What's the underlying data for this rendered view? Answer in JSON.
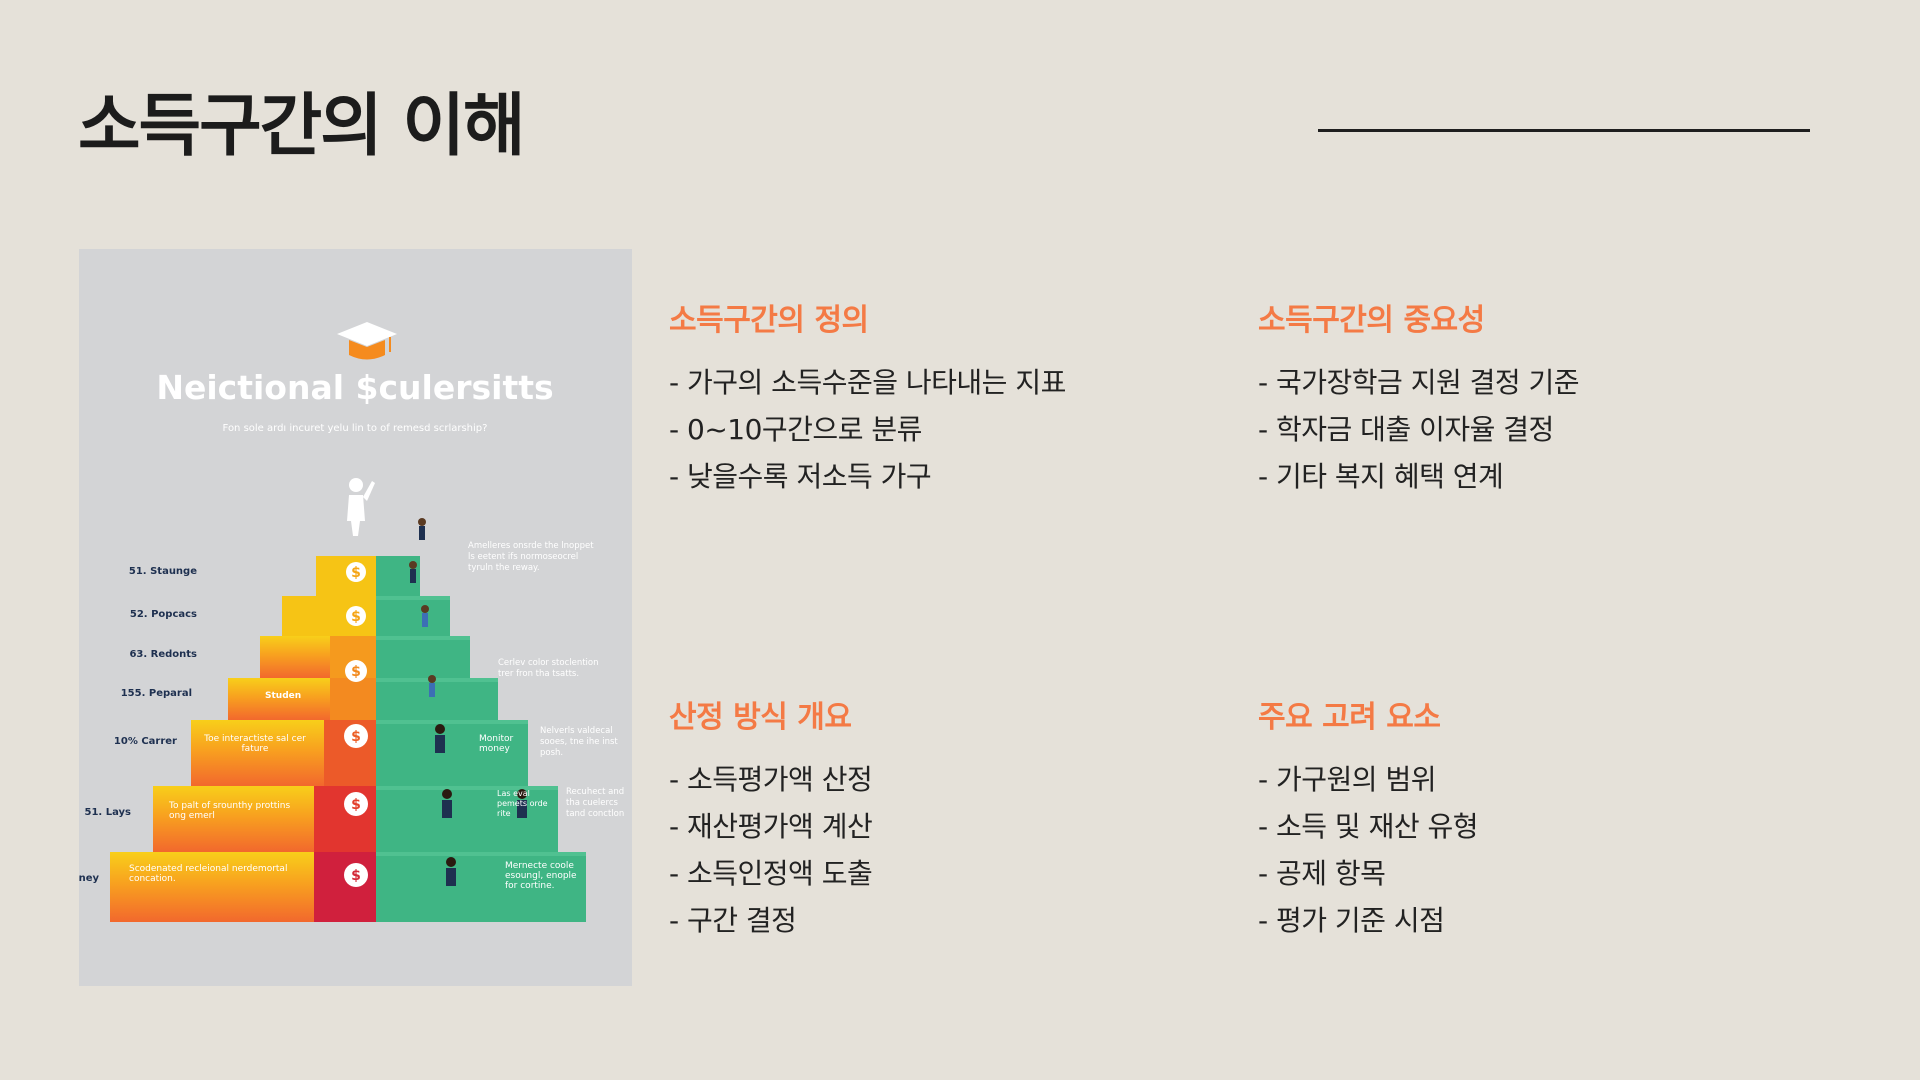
{
  "slide": {
    "title": "소득구간의 이해"
  },
  "poster": {
    "title": "Neictional $culersitts",
    "subtitle": "Fon sole ardı incuret yelu lin to of remesd scrlarship?",
    "coin_symbol": "$",
    "left_labels": [
      "51. Staunge",
      "52. Popcacs",
      "63. Redonts",
      "155. Peparal",
      "10% Carrer",
      "51. Lays",
      "ıney"
    ],
    "step_labels": [
      "Studen",
      "Toe interactiste sal cer fature",
      "To palt of srounthy prottins ong emerl",
      "Scodenated recleional nerdemortal concation."
    ],
    "green_labels": [
      "Monitor money",
      "Las eval pemets orde rite",
      "Mernecte coole esoungl, enople for cortine."
    ],
    "right_notes": [
      [
        "Amelleres onsrde the lnoppet",
        "ls eetent ifs normoseocrel",
        "tyruln the reway."
      ],
      [
        "Cerlev color stoclention",
        "trer fron tha tsatts."
      ],
      [
        "Nelverls valdecal",
        "sooes, tne ihe inst",
        "posh."
      ],
      [
        "Recuhect and",
        "tha cuelercs",
        "tand conctlon"
      ]
    ],
    "colors": {
      "background": "#d3d4d6",
      "yellow": "#f5c518",
      "orange": "#f59a1e",
      "red": "#e4312f",
      "green": "#3fb584",
      "navy": "#1e3050"
    }
  },
  "sections": {
    "definition": {
      "heading": "소득구간의 정의",
      "items": [
        "- 가구의 소득수준을 나타내는 지표",
        "- 0~10구간으로 분류",
        "- 낮을수록 저소득 가구"
      ]
    },
    "importance": {
      "heading": "소득구간의 중요성",
      "items": [
        "- 국가장학금 지원 결정 기준",
        "- 학자금 대출 이자율 결정",
        "- 기타 복지 혜택 연계"
      ]
    },
    "method": {
      "heading": "산정 방식 개요",
      "items": [
        "- 소득평가액 산정",
        "- 재산평가액 계산",
        "- 소득인정액 도출",
        "- 구간 결정"
      ]
    },
    "factors": {
      "heading": "주요 고려 요소",
      "items": [
        "- 가구원의 범위",
        "- 소득 및 재산 유형",
        "- 공제 항목",
        "- 평가 기준 시점"
      ]
    }
  }
}
